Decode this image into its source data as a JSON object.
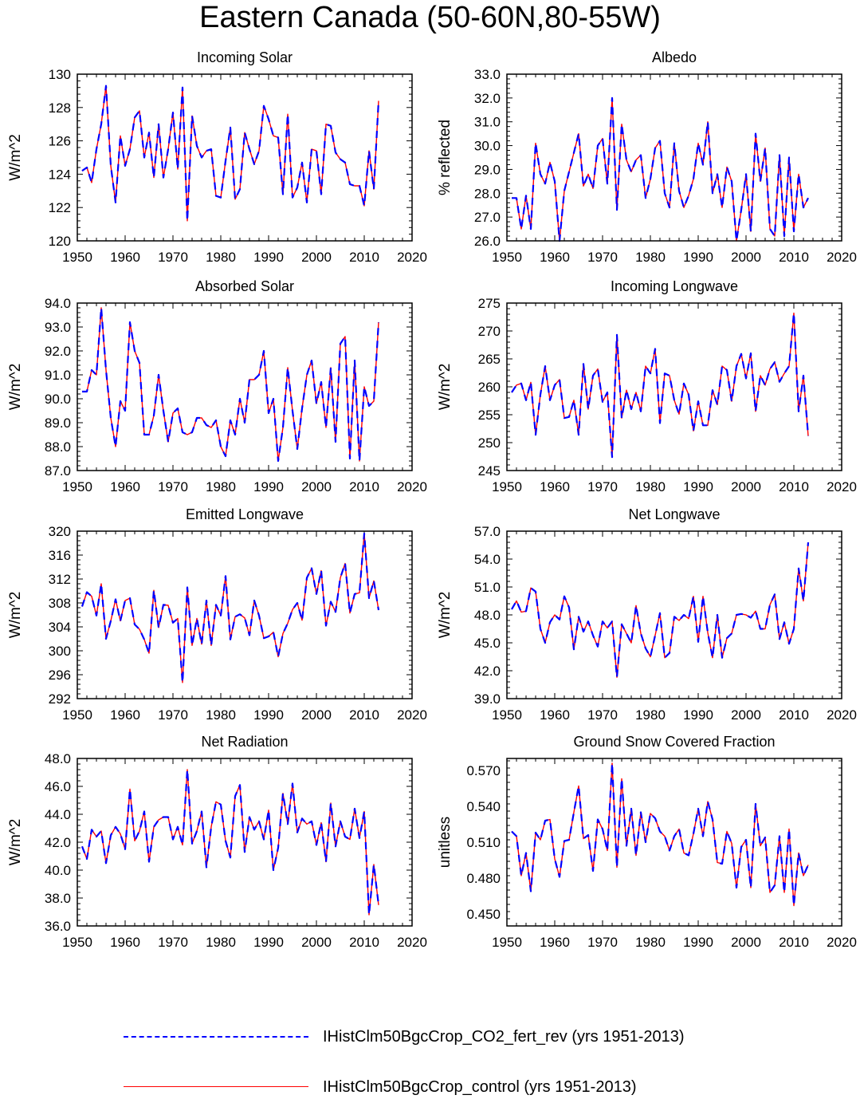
{
  "title": "Eastern Canada (50-60N,80-55W)",
  "legend": [
    {
      "label": "IHistClm50BgcCrop_CO2_fert_rev (yrs 1951-2013)",
      "color": "#0000ff",
      "style": "dashed"
    },
    {
      "label": "IHistClm50BgcCrop_control (yrs 1951-2013)",
      "color": "#ff0000",
      "style": "solid"
    }
  ],
  "chart_data": [
    {
      "type": "line",
      "title": "Incoming Solar",
      "ylabel": "W/m^2",
      "xlim": [
        1950,
        2020
      ],
      "ylim": [
        120,
        130
      ],
      "xticks": [
        1950,
        1960,
        1970,
        1980,
        1990,
        2000,
        2010,
        2020
      ],
      "yticks": [
        120,
        122,
        124,
        126,
        128,
        130
      ],
      "ytick_decimals": 0,
      "x_start": 1951,
      "values": [
        124.2,
        124.4,
        123.5,
        125.5,
        127.0,
        129.3,
        124.5,
        122.3,
        126.3,
        124.5,
        125.5,
        127.4,
        127.8,
        125.0,
        126.5,
        123.8,
        127.0,
        123.8,
        125.5,
        127.7,
        124.3,
        129.2,
        121.2,
        127.5,
        125.7,
        125.0,
        125.4,
        125.5,
        122.7,
        122.6,
        124.8,
        126.8,
        122.5,
        123.1,
        126.5,
        125.5,
        124.6,
        125.4,
        128.1,
        127.3,
        126.3,
        126.2,
        122.8,
        127.6,
        122.6,
        123.2,
        124.7,
        122.3,
        125.5,
        125.4,
        122.8,
        127.0,
        126.9,
        125.3,
        124.9,
        124.7,
        123.4,
        123.3,
        123.3,
        122.1,
        125.4,
        123.1,
        128.4
      ],
      "series": [
        {
          "name": "IHistClm50BgcCrop_CO2_fert_rev"
        },
        {
          "name": "IHistClm50BgcCrop_control"
        }
      ]
    },
    {
      "type": "line",
      "title": "Albedo",
      "ylabel": "% reflected",
      "xlim": [
        1950,
        2020
      ],
      "ylim": [
        26,
        33
      ],
      "xticks": [
        1950,
        1960,
        1970,
        1980,
        1990,
        2000,
        2010,
        2020
      ],
      "yticks": [
        26,
        27,
        28,
        29,
        30,
        31,
        32,
        33
      ],
      "ytick_decimals": 1,
      "x_start": 1951,
      "values": [
        27.8,
        27.8,
        26.5,
        27.9,
        26.5,
        30.1,
        28.8,
        28.4,
        29.3,
        28.5,
        26.0,
        28.1,
        28.9,
        29.7,
        30.5,
        28.3,
        28.8,
        28.2,
        30.0,
        30.3,
        28.4,
        32.0,
        27.3,
        30.9,
        29.4,
        28.9,
        29.4,
        29.6,
        27.8,
        28.6,
        29.9,
        30.2,
        28.0,
        27.4,
        30.1,
        28.1,
        27.4,
        27.9,
        28.6,
        30.1,
        29.2,
        31.0,
        28.0,
        28.8,
        27.4,
        29.1,
        28.5,
        26.0,
        27.3,
        28.8,
        26.4,
        30.5,
        28.5,
        29.9,
        26.5,
        26.2,
        29.6,
        26.2,
        29.5,
        26.4,
        28.8,
        27.4,
        27.8
      ],
      "series": [
        {
          "name": "IHistClm50BgcCrop_CO2_fert_rev"
        },
        {
          "name": "IHistClm50BgcCrop_control"
        }
      ]
    },
    {
      "type": "line",
      "title": "Absorbed Solar",
      "ylabel": "W/m^2",
      "xlim": [
        1950,
        2020
      ],
      "ylim": [
        87,
        94
      ],
      "xticks": [
        1950,
        1960,
        1970,
        1980,
        1990,
        2000,
        2010,
        2020
      ],
      "yticks": [
        87,
        88,
        89,
        90,
        91,
        92,
        93,
        94
      ],
      "ytick_decimals": 1,
      "x_start": 1951,
      "values": [
        90.3,
        90.3,
        91.2,
        91.0,
        93.8,
        91.2,
        89.2,
        88.0,
        89.9,
        89.5,
        93.2,
        92.0,
        91.5,
        88.5,
        88.5,
        89.3,
        91.0,
        89.5,
        88.2,
        89.4,
        89.6,
        88.6,
        88.5,
        88.6,
        89.2,
        89.2,
        88.9,
        88.8,
        89.1,
        88.0,
        87.6,
        89.1,
        88.5,
        90.0,
        89.0,
        90.8,
        90.8,
        91.0,
        92.0,
        89.4,
        90.0,
        87.4,
        88.8,
        91.3,
        89.5,
        87.9,
        89.6,
        91.0,
        91.6,
        89.8,
        90.7,
        88.8,
        91.3,
        88.2,
        92.3,
        92.6,
        87.5,
        91.6,
        87.4,
        90.5,
        89.7,
        89.9,
        93.2
      ],
      "series": [
        {
          "name": "IHistClm50BgcCrop_CO2_fert_rev"
        },
        {
          "name": "IHistClm50BgcCrop_control"
        }
      ]
    },
    {
      "type": "line",
      "title": "Incoming Longwave",
      "ylabel": "W/m^2",
      "xlim": [
        1950,
        2020
      ],
      "ylim": [
        245,
        275
      ],
      "xticks": [
        1950,
        1960,
        1970,
        1980,
        1990,
        2000,
        2010,
        2020
      ],
      "yticks": [
        245,
        250,
        255,
        260,
        265,
        270,
        275
      ],
      "ytick_decimals": 0,
      "x_start": 1951,
      "values": [
        259.0,
        260.3,
        260.6,
        257.6,
        260.8,
        251.4,
        258.6,
        263.7,
        257.6,
        260.3,
        261.3,
        254.4,
        254.6,
        257.6,
        251.4,
        264.1,
        256.0,
        262.0,
        263.2,
        257.3,
        259.0,
        247.4,
        269.3,
        254.4,
        259.4,
        256.0,
        259.0,
        255.6,
        263.7,
        262.4,
        266.8,
        253.5,
        262.4,
        262.0,
        257.6,
        255.1,
        260.6,
        258.6,
        252.1,
        257.4,
        253.1,
        253.1,
        259.4,
        256.8,
        263.7,
        263.0,
        257.4,
        263.7,
        265.9,
        261.5,
        266.0,
        255.6,
        262.0,
        260.3,
        263.2,
        264.4,
        260.9,
        262.4,
        263.7,
        273.2,
        255.6,
        262.0,
        251.2
      ],
      "series": [
        {
          "name": "IHistClm50BgcCrop_CO2_fert_rev"
        },
        {
          "name": "IHistClm50BgcCrop_control"
        }
      ]
    },
    {
      "type": "line",
      "title": "Emitted Longwave",
      "ylabel": "W/m^2",
      "xlim": [
        1950,
        2020
      ],
      "ylim": [
        292,
        320
      ],
      "xticks": [
        1950,
        1960,
        1970,
        1980,
        1990,
        2000,
        2010,
        2020
      ],
      "yticks": [
        292,
        296,
        300,
        304,
        308,
        312,
        316,
        320
      ],
      "ytick_decimals": 0,
      "x_start": 1951,
      "values": [
        307.4,
        309.8,
        309.1,
        305.9,
        311.2,
        302.0,
        305.0,
        308.6,
        305.0,
        308.4,
        308.8,
        304.4,
        303.6,
        301.9,
        299.6,
        310.1,
        303.9,
        307.7,
        307.6,
        304.7,
        305.4,
        294.7,
        310.6,
        300.9,
        305.4,
        301.1,
        308.4,
        300.9,
        307.7,
        305.9,
        312.5,
        301.9,
        305.7,
        306.1,
        305.5,
        302.6,
        308.4,
        305.9,
        302.1,
        302.4,
        303.1,
        299.0,
        302.9,
        304.6,
        306.9,
        308.0,
        305.1,
        312.2,
        313.8,
        309.5,
        313.4,
        304.2,
        308.2,
        306.5,
        312.2,
        314.6,
        306.3,
        309.5,
        309.7,
        319.6,
        308.8,
        311.7,
        306.8
      ],
      "series": [
        {
          "name": "IHistClm50BgcCrop_CO2_fert_rev"
        },
        {
          "name": "IHistClm50BgcCrop_control"
        }
      ]
    },
    {
      "type": "line",
      "title": "Net Longwave",
      "ylabel": "W/m^2",
      "xlim": [
        1950,
        2020
      ],
      "ylim": [
        39,
        57
      ],
      "xticks": [
        1950,
        1960,
        1970,
        1980,
        1990,
        2000,
        2010,
        2020
      ],
      "yticks": [
        39,
        42,
        45,
        48,
        51,
        54,
        57
      ],
      "ytick_decimals": 1,
      "x_start": 1951,
      "values": [
        48.6,
        49.5,
        48.3,
        48.4,
        50.9,
        50.5,
        46.5,
        45.0,
        47.2,
        48.0,
        47.5,
        50.0,
        48.8,
        44.3,
        47.8,
        46.2,
        47.3,
        45.8,
        44.6,
        47.3,
        46.6,
        47.3,
        41.3,
        47.0,
        46.0,
        45.0,
        49.0,
        46.0,
        44.4,
        43.5,
        45.8,
        48.2,
        43.4,
        43.9,
        47.8,
        47.4,
        48.0,
        47.6,
        50.0,
        45.1,
        50.0,
        46.1,
        43.4,
        48.0,
        43.4,
        45.5,
        46.0,
        48.0,
        48.1,
        48.0,
        47.7,
        48.4,
        46.5,
        46.5,
        49.1,
        50.2,
        45.4,
        47.2,
        44.9,
        46.5,
        53.0,
        49.5,
        55.8
      ],
      "series": [
        {
          "name": "IHistClm50BgcCrop_CO2_fert_rev"
        },
        {
          "name": "IHistClm50BgcCrop_control"
        }
      ]
    },
    {
      "type": "line",
      "title": "Net Radiation",
      "ylabel": "W/m^2",
      "xlim": [
        1950,
        2020
      ],
      "ylim": [
        36,
        48
      ],
      "xticks": [
        1950,
        1960,
        1970,
        1980,
        1990,
        2000,
        2010,
        2020
      ],
      "yticks": [
        36,
        38,
        40,
        42,
        44,
        46,
        48
      ],
      "ytick_decimals": 1,
      "x_start": 1951,
      "values": [
        41.7,
        40.8,
        42.9,
        42.4,
        42.8,
        40.5,
        42.5,
        43.1,
        42.6,
        41.5,
        45.8,
        42.1,
        42.8,
        44.2,
        40.6,
        43.1,
        43.6,
        43.8,
        43.8,
        42.2,
        43.1,
        41.8,
        47.2,
        41.9,
        42.8,
        44.2,
        40.2,
        43.1,
        44.9,
        44.7,
        42.1,
        40.9,
        45.3,
        46.1,
        41.3,
        43.8,
        42.9,
        43.5,
        42.2,
        44.3,
        40.0,
        41.6,
        45.5,
        43.3,
        46.2,
        42.7,
        43.7,
        43.3,
        43.5,
        41.8,
        43.4,
        40.6,
        44.8,
        41.7,
        43.5,
        42.4,
        42.2,
        44.4,
        42.3,
        44.2,
        36.8,
        40.4,
        37.5
      ],
      "series": [
        {
          "name": "IHistClm50BgcCrop_CO2_fert_rev"
        },
        {
          "name": "IHistClm50BgcCrop_control"
        }
      ]
    },
    {
      "type": "line",
      "title": "Ground Snow Covered Fraction",
      "ylabel": "unitless",
      "xlim": [
        1950,
        2020
      ],
      "ylim": [
        0.44,
        0.58
      ],
      "xticks": [
        1950,
        1960,
        1970,
        1980,
        1990,
        2000,
        2010,
        2020
      ],
      "yticks": [
        0.45,
        0.48,
        0.51,
        0.54,
        0.57
      ],
      "ytick_decimals": 3,
      "x_start": 1951,
      "values": [
        0.519,
        0.515,
        0.482,
        0.501,
        0.469,
        0.518,
        0.512,
        0.528,
        0.529,
        0.496,
        0.481,
        0.511,
        0.512,
        0.535,
        0.557,
        0.513,
        0.516,
        0.486,
        0.529,
        0.521,
        0.503,
        0.576,
        0.489,
        0.563,
        0.507,
        0.538,
        0.499,
        0.535,
        0.51,
        0.534,
        0.53,
        0.519,
        0.515,
        0.503,
        0.515,
        0.521,
        0.501,
        0.499,
        0.517,
        0.538,
        0.515,
        0.544,
        0.529,
        0.493,
        0.492,
        0.519,
        0.509,
        0.472,
        0.506,
        0.512,
        0.472,
        0.542,
        0.507,
        0.514,
        0.468,
        0.474,
        0.515,
        0.468,
        0.521,
        0.457,
        0.501,
        0.482,
        0.491
      ],
      "series": [
        {
          "name": "IHistClm50BgcCrop_CO2_fert_rev"
        },
        {
          "name": "IHistClm50BgcCrop_control"
        }
      ]
    }
  ]
}
